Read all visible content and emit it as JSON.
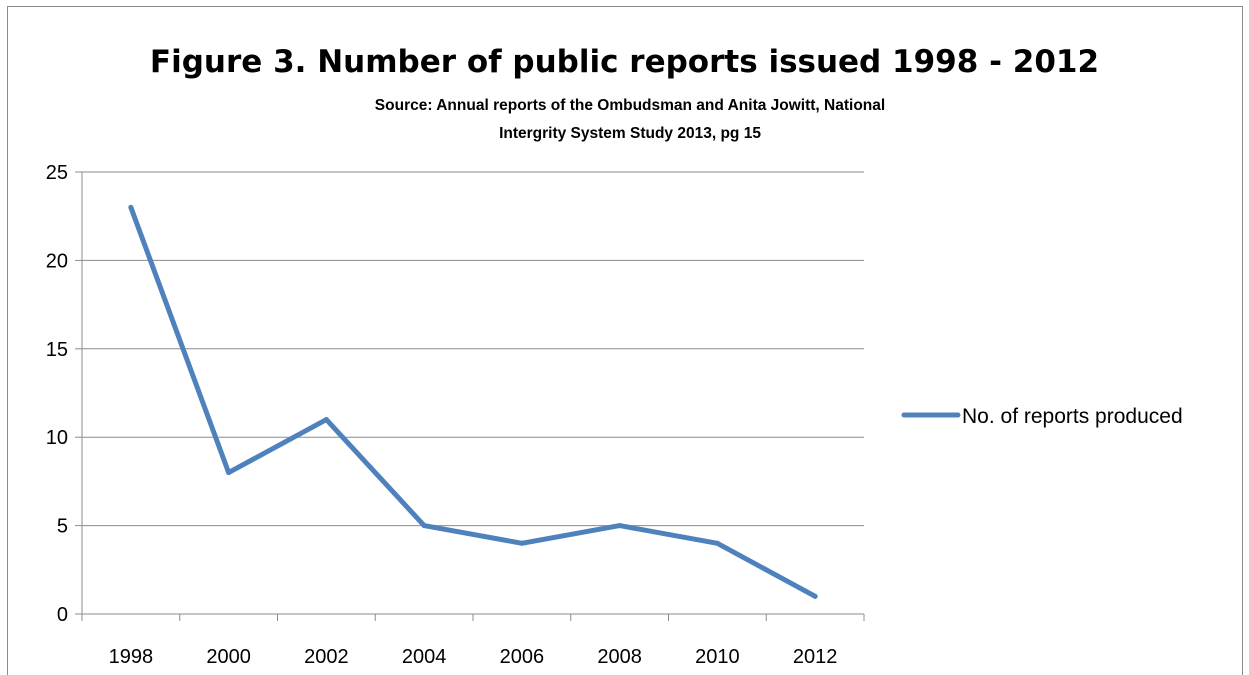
{
  "chart_data": {
    "type": "line",
    "title": "Figure 3. Number of public reports issued 1998 - 2012",
    "subtitle": "Source: Annual reports of the Ombudsman and Anita Jowitt, National Intergrity System Study 2013, pg 15",
    "xlabel": "",
    "ylabel": "",
    "categories": [
      "1998",
      "2000",
      "2002",
      "2004",
      "2006",
      "2008",
      "2010",
      "2012"
    ],
    "ylim": [
      0,
      25
    ],
    "yticks": [
      0,
      5,
      10,
      15,
      20,
      25
    ],
    "grid": true,
    "legend_position": "right",
    "series": [
      {
        "name": "No. of reports produced",
        "values": [
          23,
          8,
          11,
          5,
          4,
          5,
          4,
          1
        ],
        "color": "#4f81bd"
      }
    ]
  }
}
